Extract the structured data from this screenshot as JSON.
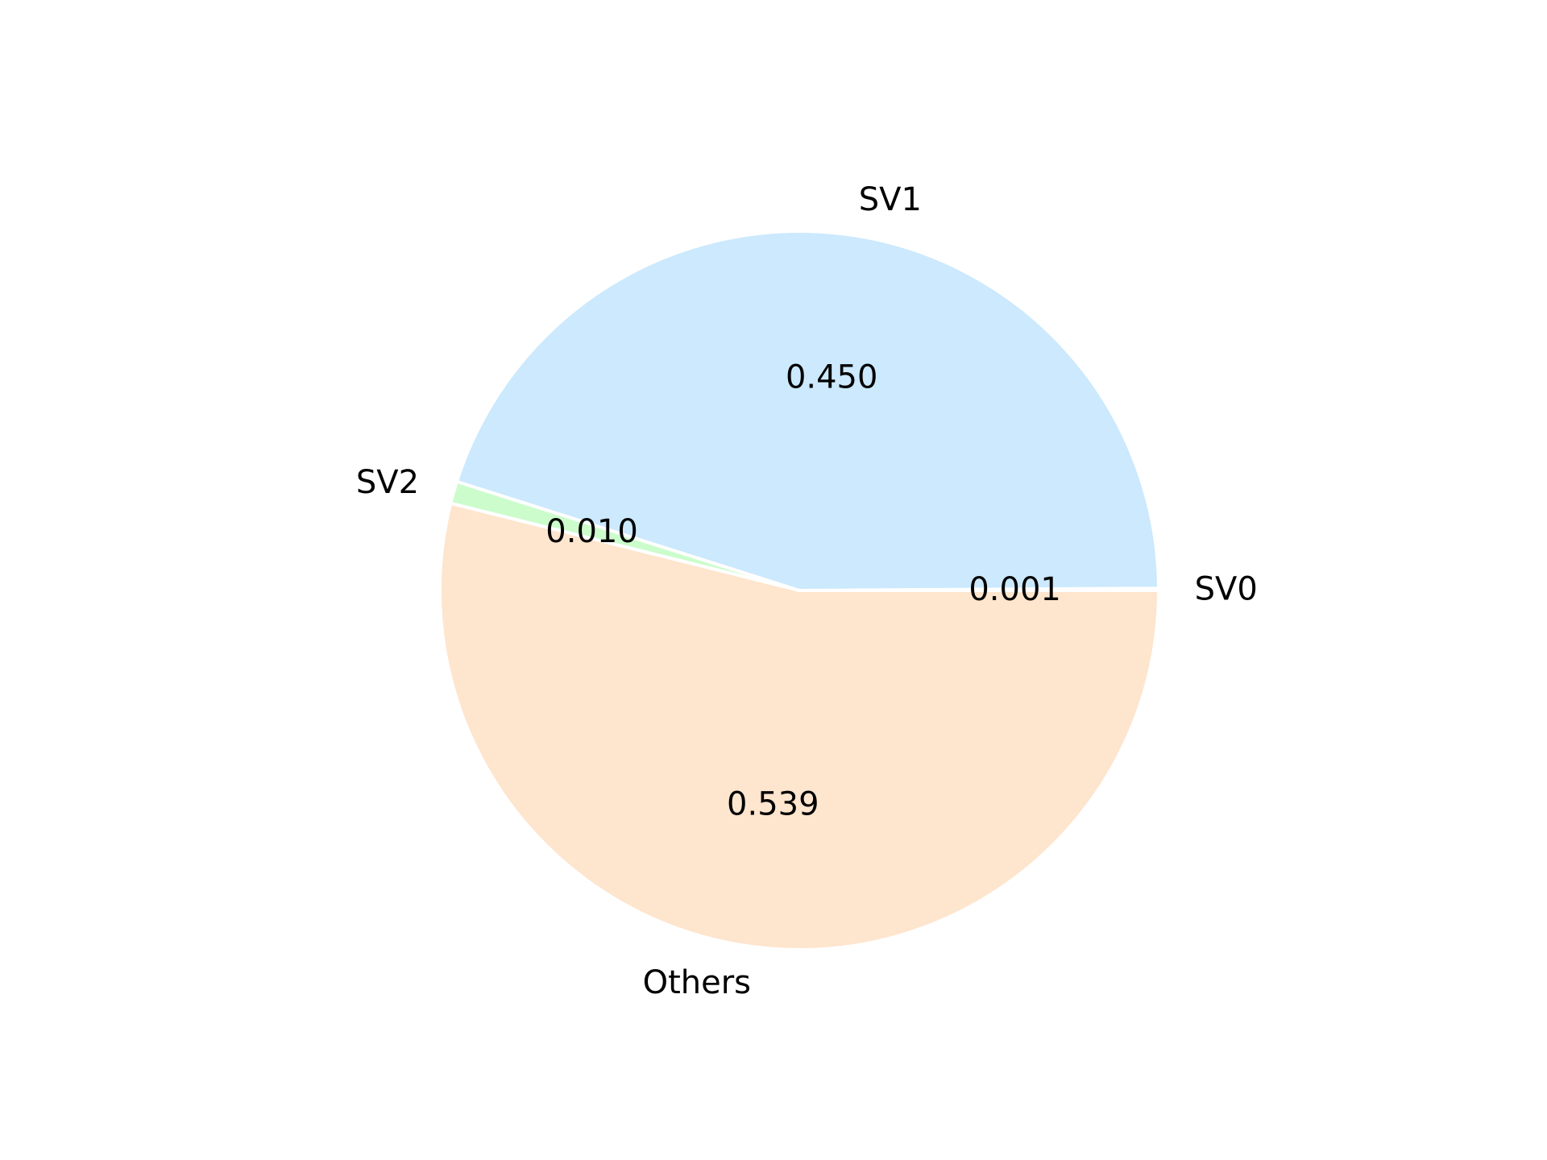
{
  "chart_data": {
    "type": "pie",
    "categories": [
      "SV0",
      "SV1",
      "SV2",
      "Others"
    ],
    "values": [
      0.001,
      0.45,
      0.01,
      0.539
    ],
    "value_labels": [
      "0.001",
      "0.450",
      "0.010",
      "0.539"
    ],
    "colors": [
      "#cceecc",
      "#cce9fd",
      "#ccfccc",
      "#fee5ce"
    ],
    "start_angle_deg": 0,
    "direction": "counterclockwise",
    "wedge_edge_color": "#ffffff",
    "legend": "none"
  }
}
